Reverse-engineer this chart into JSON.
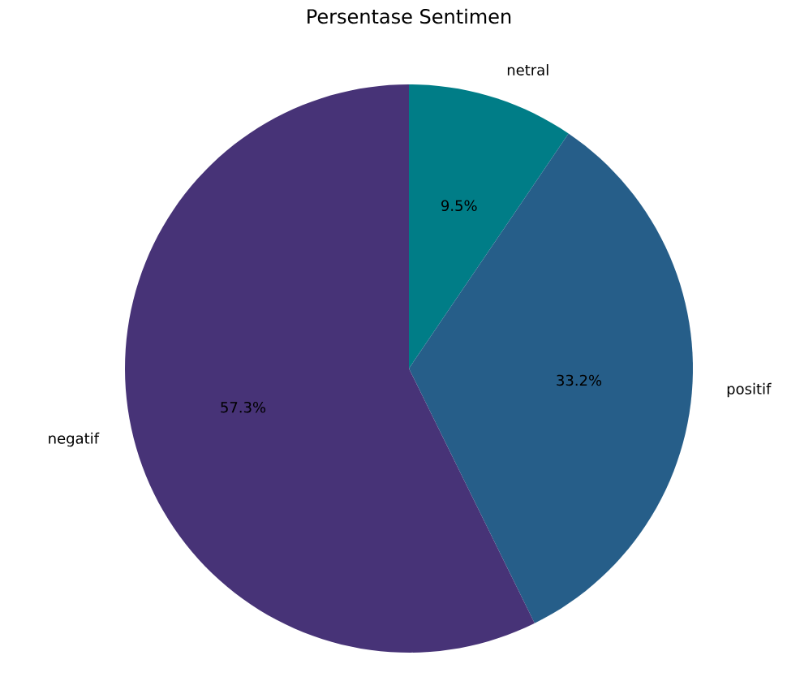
{
  "chart_data": {
    "type": "pie",
    "title": "Persentase Sentimen",
    "categories": [
      "netral",
      "positif",
      "negatif"
    ],
    "values": [
      9.5,
      33.2,
      57.3
    ],
    "value_labels": [
      "9.5%",
      "33.2%",
      "57.3%"
    ],
    "colors": [
      "#007d87",
      "#265e89",
      "#473377"
    ]
  }
}
